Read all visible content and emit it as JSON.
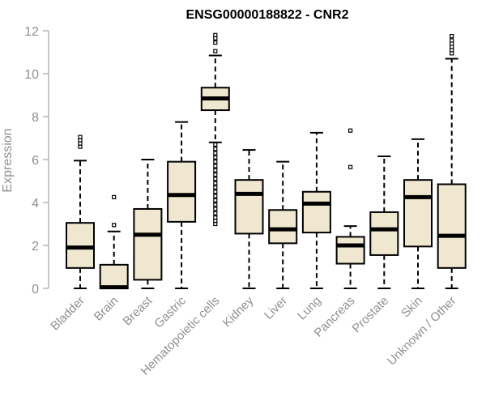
{
  "chart_data": {
    "type": "box",
    "title": "ENSG00000188822 - CNR2",
    "xlabel": "",
    "ylabel": "Expression",
    "ylim": [
      0,
      12
    ],
    "yticks": [
      0,
      2,
      4,
      6,
      8,
      10,
      12
    ],
    "grid": false,
    "legend": "none",
    "colors": {
      "box_fill": "#efe7cf",
      "box_stroke": "#000000",
      "axis": "#909090",
      "median": "#000000"
    },
    "categories": [
      "Bladder",
      "Brain",
      "Breast",
      "Gastric",
      "Hematopoietic cells",
      "Kidney",
      "Liver",
      "Lung",
      "Pancreas",
      "Prostate",
      "Skin",
      "Unknown / Other"
    ],
    "boxes": [
      {
        "min": 0,
        "q1": 0.95,
        "median": 1.9,
        "q3": 3.05,
        "max": 5.95,
        "outliers": [
          6.6,
          6.75,
          6.9,
          7.05
        ]
      },
      {
        "min": 0,
        "q1": 0,
        "median": 0.05,
        "q3": 1.1,
        "max": 2.65,
        "outliers": [
          2.95,
          4.25
        ]
      },
      {
        "min": 0,
        "q1": 0.4,
        "median": 2.5,
        "q3": 3.7,
        "max": 6.0,
        "outliers": []
      },
      {
        "min": 0,
        "q1": 3.1,
        "median": 4.35,
        "q3": 5.9,
        "max": 7.75,
        "outliers": []
      },
      {
        "min": 6.8,
        "q1": 8.3,
        "median": 8.85,
        "q3": 9.35,
        "max": 10.85,
        "outliers": [
          11.05,
          11.45,
          11.65,
          11.8,
          3.0,
          3.15,
          3.3,
          3.5,
          3.7,
          3.9,
          4.1,
          4.3,
          4.5,
          4.7,
          4.9,
          5.1,
          5.3,
          5.5,
          5.7,
          5.9,
          6.1,
          6.3,
          6.5,
          6.7
        ]
      },
      {
        "min": 0,
        "q1": 2.55,
        "median": 4.4,
        "q3": 5.05,
        "max": 6.45,
        "outliers": []
      },
      {
        "min": 0,
        "q1": 2.1,
        "median": 2.75,
        "q3": 3.65,
        "max": 5.9,
        "outliers": []
      },
      {
        "min": 0,
        "q1": 2.6,
        "median": 3.95,
        "q3": 4.5,
        "max": 7.25,
        "outliers": []
      },
      {
        "min": 0,
        "q1": 1.15,
        "median": 2.0,
        "q3": 2.4,
        "max": 2.9,
        "outliers": [
          5.65,
          7.35
        ]
      },
      {
        "min": 0,
        "q1": 1.55,
        "median": 2.75,
        "q3": 3.55,
        "max": 6.15,
        "outliers": []
      },
      {
        "min": 0,
        "q1": 1.95,
        "median": 4.25,
        "q3": 5.05,
        "max": 6.95,
        "outliers": []
      },
      {
        "min": 0,
        "q1": 0.95,
        "median": 2.45,
        "q3": 4.85,
        "max": 10.7,
        "outliers": [
          10.95,
          11.1,
          11.25,
          11.4,
          11.55,
          11.75
        ]
      }
    ]
  }
}
